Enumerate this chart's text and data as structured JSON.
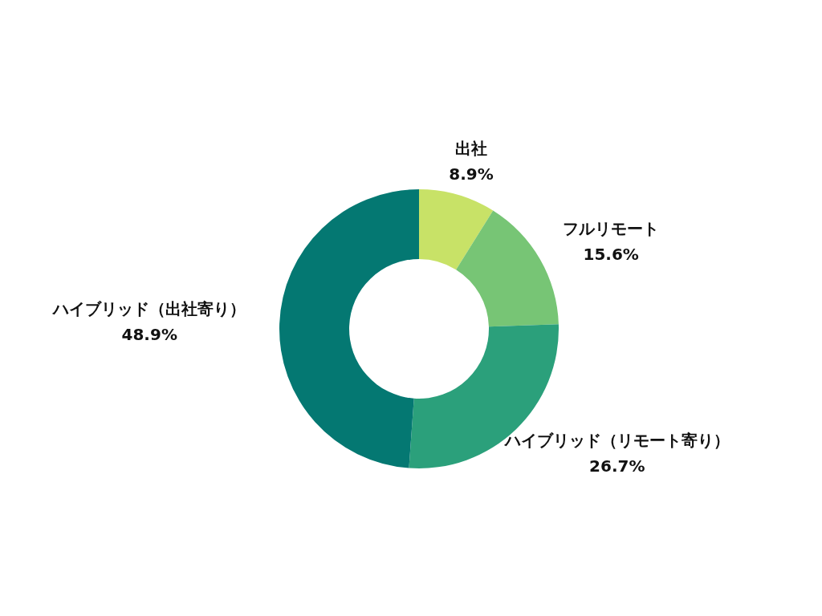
{
  "chart_data": {
    "type": "donut",
    "categories": [
      "出社",
      "フルリモート",
      "ハイブリッド（リモート寄り）",
      "ハイブリッド（出社寄り）"
    ],
    "values": [
      8.9,
      15.6,
      26.7,
      48.9
    ],
    "value_labels": [
      "8.9%",
      "15.6%",
      "26.7%",
      "48.9%"
    ],
    "colors": [
      "#c8e267",
      "#77c575",
      "#2ba07b",
      "#047872"
    ]
  }
}
